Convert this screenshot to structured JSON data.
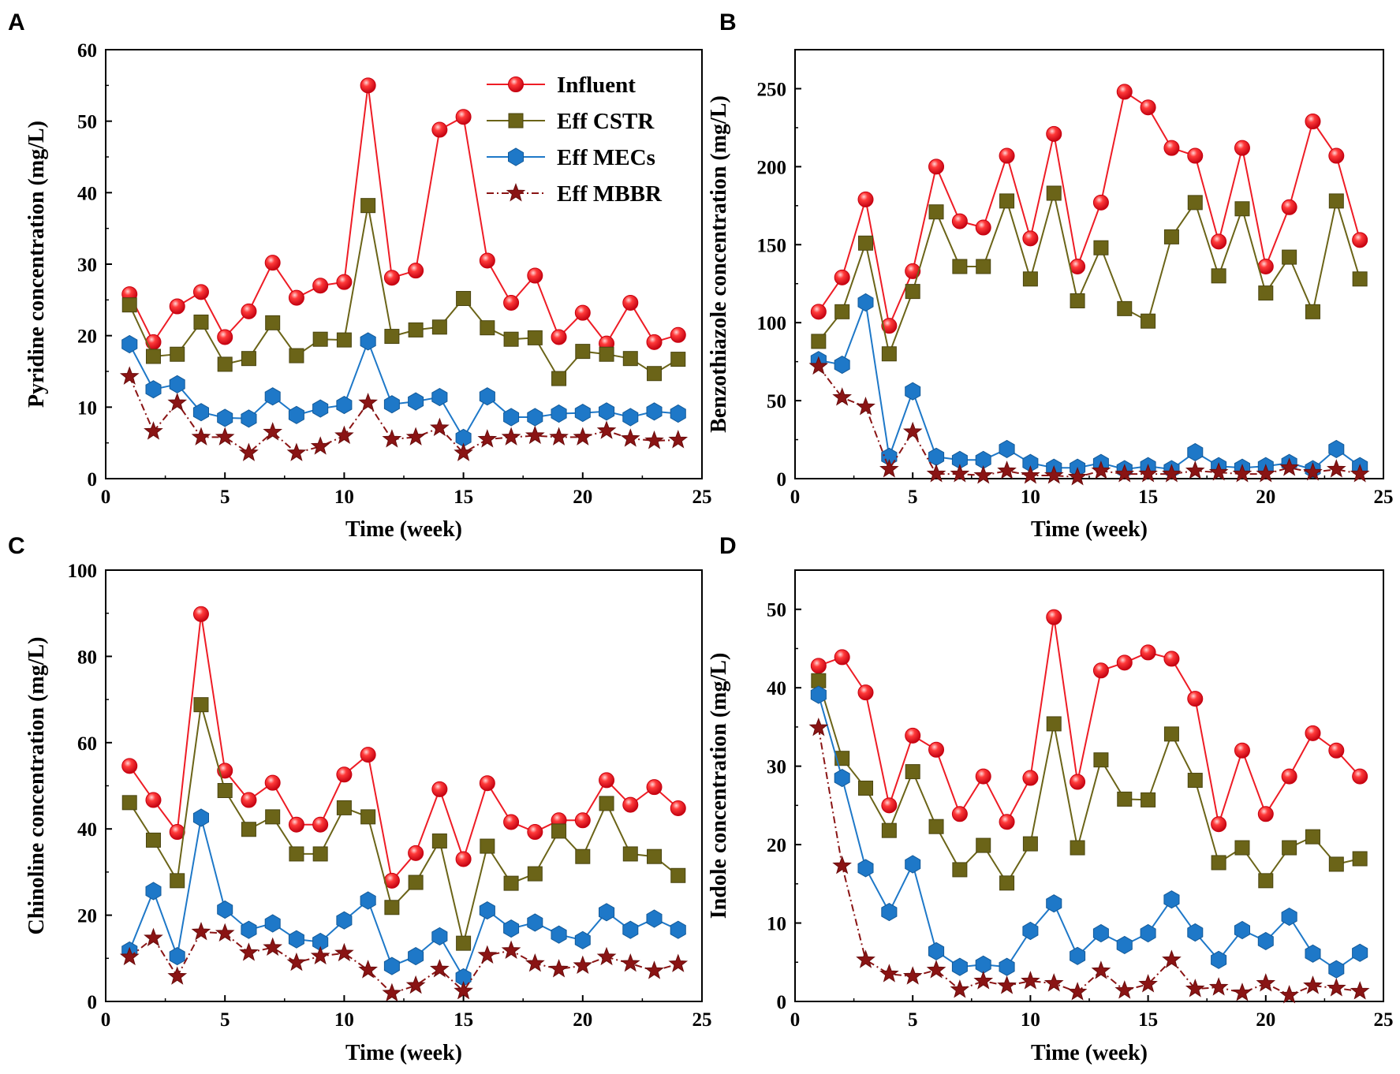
{
  "figure": {
    "series_styles": [
      {
        "name": "Influent",
        "color": "#ee1c25",
        "marker": "circle",
        "dash": "none"
      },
      {
        "name": "Eff CSTR",
        "color": "#6b6418",
        "marker": "square",
        "dash": "none"
      },
      {
        "name": "Eff MECs",
        "color": "#1e78c8",
        "marker": "hexagon",
        "dash": "none"
      },
      {
        "name": "Eff MBBR",
        "color": "#8a1414",
        "marker": "star",
        "dash": "dashdot"
      }
    ]
  },
  "chart_data": [
    {
      "panel": "A",
      "type": "line",
      "xlabel": "Time (week)",
      "ylabel": "Pyridine concentration (mg/L)",
      "xlim": [
        0,
        25
      ],
      "ylim": [
        0,
        60
      ],
      "xticks": [
        0,
        5,
        10,
        15,
        20,
        25
      ],
      "yticks": [
        0,
        10,
        20,
        30,
        40,
        50,
        60
      ],
      "legend": {
        "position": "top-right",
        "entries": [
          "Influent",
          "Eff CSTR",
          "Eff MECs",
          "Eff MBBR"
        ]
      },
      "x": [
        1,
        2,
        3,
        4,
        5,
        6,
        7,
        8,
        9,
        10,
        11,
        12,
        13,
        14,
        15,
        16,
        17,
        18,
        19,
        20,
        21,
        22,
        23,
        24
      ],
      "series": [
        {
          "name": "Influent",
          "values": [
            25.8,
            19.1,
            24.1,
            26.1,
            19.8,
            23.4,
            30.2,
            25.3,
            27.0,
            27.5,
            55.0,
            28.1,
            29.1,
            48.8,
            50.6,
            30.5,
            24.6,
            28.4,
            19.8,
            23.2,
            18.9,
            24.6,
            19.1,
            20.1
          ]
        },
        {
          "name": "Eff CSTR",
          "values": [
            24.3,
            17.1,
            17.4,
            21.9,
            16.0,
            16.8,
            21.8,
            17.2,
            19.5,
            19.4,
            38.2,
            19.9,
            20.8,
            21.2,
            25.2,
            21.1,
            19.5,
            19.7,
            14.0,
            17.8,
            17.4,
            16.8,
            14.7,
            16.7
          ]
        },
        {
          "name": "Eff MECs",
          "values": [
            18.8,
            12.5,
            13.2,
            9.3,
            8.5,
            8.4,
            11.5,
            8.9,
            9.8,
            10.3,
            19.2,
            10.4,
            10.8,
            11.4,
            5.7,
            11.5,
            8.6,
            8.6,
            9.1,
            9.2,
            9.4,
            8.6,
            9.4,
            9.1
          ]
        },
        {
          "name": "Eff MBBR",
          "values": [
            14.3,
            6.6,
            10.6,
            5.8,
            5.8,
            3.6,
            6.5,
            3.6,
            4.5,
            6.0,
            10.6,
            5.5,
            5.8,
            7.1,
            3.6,
            5.5,
            5.8,
            6.0,
            5.8,
            5.8,
            6.7,
            5.6,
            5.3,
            5.4
          ]
        }
      ]
    },
    {
      "panel": "B",
      "type": "line",
      "xlabel": "Time (week)",
      "ylabel": "Benzothiazole concentration (mg/L)",
      "xlim": [
        0,
        25
      ],
      "ylim": [
        0,
        275
      ],
      "xticks": [
        0,
        5,
        10,
        15,
        20,
        25
      ],
      "yticks": [
        0,
        50,
        100,
        150,
        200,
        250
      ],
      "x": [
        1,
        2,
        3,
        4,
        5,
        6,
        7,
        8,
        9,
        10,
        11,
        12,
        13,
        14,
        15,
        16,
        17,
        18,
        19,
        20,
        21,
        22,
        23,
        24
      ],
      "series": [
        {
          "name": "Influent",
          "values": [
            107,
            129,
            179,
            98,
            133,
            200,
            165,
            161,
            207,
            154,
            221,
            136,
            177,
            248,
            238,
            212,
            207,
            152,
            212,
            136,
            174,
            229,
            207,
            153
          ]
        },
        {
          "name": "Eff CSTR",
          "values": [
            88,
            107,
            151,
            80,
            120,
            171,
            136,
            136,
            178,
            128,
            183,
            114,
            148,
            109,
            101,
            155,
            177,
            130,
            173,
            119,
            142,
            107,
            178,
            128
          ]
        },
        {
          "name": "Eff MECs",
          "values": [
            76,
            73,
            113,
            14,
            56,
            14,
            12,
            12,
            19,
            10,
            7,
            7,
            10,
            6,
            8,
            6,
            17,
            8,
            7,
            8,
            10,
            6,
            19,
            8
          ]
        },
        {
          "name": "Eff MBBR",
          "values": [
            72,
            52,
            46,
            6,
            30,
            3,
            3,
            2,
            5,
            2,
            2,
            1,
            5,
            3,
            3,
            3,
            5,
            4,
            3,
            3,
            7,
            4,
            6,
            3
          ]
        }
      ]
    },
    {
      "panel": "C",
      "type": "line",
      "xlabel": "Time (week)",
      "ylabel": "Chinoline concentration (mg/L)",
      "xlim": [
        0,
        25
      ],
      "ylim": [
        0,
        100
      ],
      "xticks": [
        0,
        5,
        10,
        15,
        20,
        25
      ],
      "yticks": [
        0,
        20,
        40,
        60,
        80,
        100
      ],
      "x": [
        1,
        2,
        3,
        4,
        5,
        6,
        7,
        8,
        9,
        10,
        11,
        12,
        13,
        14,
        15,
        16,
        17,
        18,
        19,
        20,
        21,
        22,
        23,
        24
      ],
      "series": [
        {
          "name": "Influent",
          "values": [
            54.6,
            46.7,
            39.3,
            89.8,
            53.5,
            46.7,
            50.7,
            41.0,
            41.0,
            52.6,
            57.2,
            28.0,
            34.4,
            49.2,
            33.0,
            50.6,
            41.6,
            39.3,
            42.0,
            42.0,
            51.3,
            45.6,
            49.7,
            44.8
          ]
        },
        {
          "name": "Eff CSTR",
          "values": [
            46.1,
            37.4,
            28.0,
            68.8,
            48.9,
            39.9,
            42.8,
            34.2,
            34.2,
            44.9,
            42.8,
            21.8,
            27.6,
            37.2,
            13.5,
            36.0,
            27.4,
            29.6,
            39.5,
            33.6,
            45.9,
            34.2,
            33.6,
            29.2
          ]
        },
        {
          "name": "Eff MECs",
          "values": [
            11.8,
            25.6,
            10.5,
            42.6,
            21.3,
            16.6,
            18.1,
            14.4,
            13.8,
            18.8,
            23.4,
            8.2,
            10.5,
            15.1,
            5.6,
            21.1,
            16.9,
            18.3,
            15.5,
            14.2,
            20.7,
            16.6,
            19.2,
            16.6
          ]
        },
        {
          "name": "Eff MBBR",
          "values": [
            10.3,
            14.7,
            5.8,
            16.1,
            15.8,
            11.3,
            12.5,
            9.0,
            10.5,
            11.2,
            7.3,
            1.9,
            3.7,
            7.5,
            2.4,
            10.7,
            11.8,
            8.8,
            7.5,
            8.3,
            10.3,
            8.8,
            7.1,
            8.7
          ]
        }
      ]
    },
    {
      "panel": "D",
      "type": "line",
      "xlabel": "Time (week)",
      "ylabel": "Indole concentration (mg/L)",
      "xlim": [
        0,
        25
      ],
      "ylim": [
        0,
        55
      ],
      "xticks": [
        0,
        5,
        10,
        15,
        20,
        25
      ],
      "yticks": [
        0,
        10,
        20,
        30,
        40,
        50
      ],
      "x": [
        1,
        2,
        3,
        4,
        5,
        6,
        7,
        8,
        9,
        10,
        11,
        12,
        13,
        14,
        15,
        16,
        17,
        18,
        19,
        20,
        21,
        22,
        23,
        24
      ],
      "series": [
        {
          "name": "Influent",
          "values": [
            42.8,
            43.9,
            39.4,
            25.0,
            33.9,
            32.1,
            23.9,
            28.7,
            22.9,
            28.5,
            49.0,
            28.0,
            42.2,
            43.2,
            44.5,
            43.7,
            38.6,
            22.6,
            32.0,
            23.9,
            28.7,
            34.2,
            32.0,
            28.7
          ]
        },
        {
          "name": "Eff CSTR",
          "values": [
            40.9,
            31.0,
            27.2,
            21.8,
            29.3,
            22.3,
            16.8,
            19.9,
            15.1,
            20.1,
            35.4,
            19.6,
            30.8,
            25.8,
            25.7,
            34.1,
            28.2,
            17.7,
            19.6,
            15.4,
            19.6,
            21.0,
            17.5,
            18.2
          ]
        },
        {
          "name": "Eff MECs",
          "values": [
            39.1,
            28.5,
            17.0,
            11.4,
            17.5,
            6.4,
            4.4,
            4.7,
            4.4,
            9.0,
            12.5,
            5.8,
            8.7,
            7.2,
            8.7,
            13.0,
            8.8,
            5.3,
            9.1,
            7.7,
            10.8,
            6.1,
            4.1,
            6.2
          ]
        },
        {
          "name": "Eff MBBR",
          "values": [
            34.9,
            17.3,
            5.3,
            3.5,
            3.2,
            4.0,
            1.5,
            2.6,
            2.0,
            2.6,
            2.3,
            1.2,
            3.9,
            1.4,
            2.2,
            5.3,
            1.6,
            1.8,
            1.1,
            2.3,
            0.8,
            2.0,
            1.7,
            1.3
          ]
        }
      ]
    }
  ]
}
